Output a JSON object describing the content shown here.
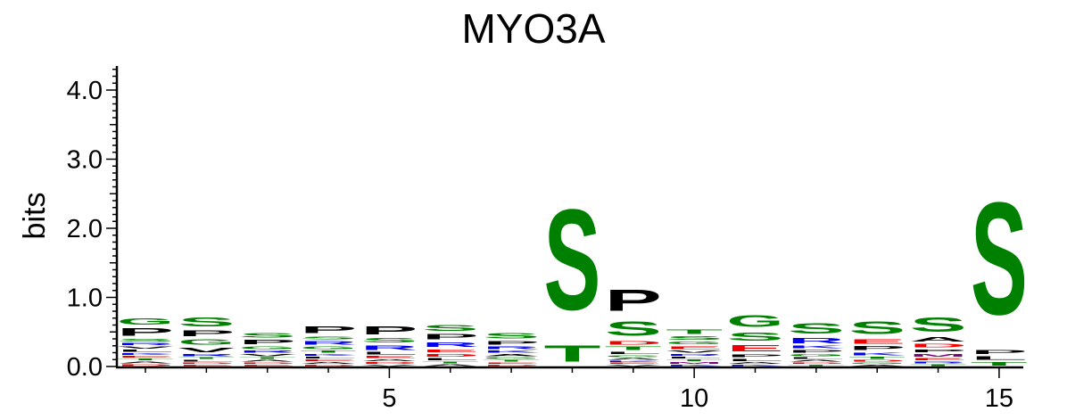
{
  "chart_data": {
    "type": "sequence-logo",
    "title": "MYO3A",
    "ylabel": "bits",
    "ylim": [
      0,
      4.3
    ],
    "yticks": [
      "0.0",
      "1.0",
      "2.0",
      "3.0",
      "4.0"
    ],
    "xticks": [
      "5",
      "10",
      "15"
    ],
    "colors": {
      "green": "#008000",
      "black": "#000000",
      "blue": "#0000ee",
      "red": "#ee0000",
      "purple": "#800080"
    },
    "positions": [
      {
        "pos": 1,
        "stack": [
          {
            "letter": "D",
            "color": "red",
            "bits": 0.04
          },
          {
            "letter": "A",
            "color": "black",
            "bits": 0.04
          },
          {
            "letter": "T",
            "color": "green",
            "bits": 0.04
          },
          {
            "letter": "E",
            "color": "red",
            "bits": 0.04
          },
          {
            "letter": "K",
            "color": "blue",
            "bits": 0.04
          },
          {
            "letter": "L",
            "color": "black",
            "bits": 0.05
          },
          {
            "letter": "V",
            "color": "black",
            "bits": 0.05
          },
          {
            "letter": "R",
            "color": "blue",
            "bits": 0.05
          },
          {
            "letter": "S",
            "color": "green",
            "bits": 0.06
          },
          {
            "letter": "P",
            "color": "black",
            "bits": 0.17
          },
          {
            "letter": "G",
            "color": "green",
            "bits": 0.14
          }
        ]
      },
      {
        "pos": 2,
        "stack": [
          {
            "letter": "E",
            "color": "red",
            "bits": 0.03
          },
          {
            "letter": "D",
            "color": "red",
            "bits": 0.03
          },
          {
            "letter": "L",
            "color": "black",
            "bits": 0.04
          },
          {
            "letter": "T",
            "color": "green",
            "bits": 0.04
          },
          {
            "letter": "R",
            "color": "blue",
            "bits": 0.05
          },
          {
            "letter": "V",
            "color": "black",
            "bits": 0.1
          },
          {
            "letter": "G",
            "color": "green",
            "bits": 0.12
          },
          {
            "letter": "P",
            "color": "black",
            "bits": 0.13
          },
          {
            "letter": "S",
            "color": "green",
            "bits": 0.21
          }
        ]
      },
      {
        "pos": 3,
        "stack": [
          {
            "letter": "E",
            "color": "red",
            "bits": 0.03
          },
          {
            "letter": "D",
            "color": "red",
            "bits": 0.03
          },
          {
            "letter": "A",
            "color": "black",
            "bits": 0.04
          },
          {
            "letter": "T",
            "color": "green",
            "bits": 0.04
          },
          {
            "letter": "V",
            "color": "black",
            "bits": 0.05
          },
          {
            "letter": "R",
            "color": "blue",
            "bits": 0.05
          },
          {
            "letter": "G",
            "color": "green",
            "bits": 0.06
          },
          {
            "letter": "P",
            "color": "black",
            "bits": 0.1
          },
          {
            "letter": "S",
            "color": "green",
            "bits": 0.1
          }
        ]
      },
      {
        "pos": 4,
        "stack": [
          {
            "letter": "D",
            "color": "red",
            "bits": 0.03
          },
          {
            "letter": "A",
            "color": "black",
            "bits": 0.04
          },
          {
            "letter": "E",
            "color": "red",
            "bits": 0.04
          },
          {
            "letter": "L",
            "color": "black",
            "bits": 0.04
          },
          {
            "letter": "K",
            "color": "blue",
            "bits": 0.04
          },
          {
            "letter": "T",
            "color": "green",
            "bits": 0.05
          },
          {
            "letter": "G",
            "color": "green",
            "bits": 0.06
          },
          {
            "letter": "R",
            "color": "blue",
            "bits": 0.08
          },
          {
            "letter": "S",
            "color": "green",
            "bits": 0.07
          },
          {
            "letter": "P",
            "color": "black",
            "bits": 0.16
          }
        ]
      },
      {
        "pos": 5,
        "stack": [
          {
            "letter": "V",
            "color": "black",
            "bits": 0.03
          },
          {
            "letter": "D",
            "color": "red",
            "bits": 0.04
          },
          {
            "letter": "A",
            "color": "black",
            "bits": 0.04
          },
          {
            "letter": "E",
            "color": "red",
            "bits": 0.05
          },
          {
            "letter": "L",
            "color": "black",
            "bits": 0.06
          },
          {
            "letter": "R",
            "color": "blue",
            "bits": 0.11
          },
          {
            "letter": "S",
            "color": "green",
            "bits": 0.1
          },
          {
            "letter": "P",
            "color": "black",
            "bits": 0.19
          }
        ]
      },
      {
        "pos": 6,
        "stack": [
          {
            "letter": "A",
            "color": "black",
            "bits": 0.04
          },
          {
            "letter": "T",
            "color": "green",
            "bits": 0.04
          },
          {
            "letter": "L",
            "color": "black",
            "bits": 0.05
          },
          {
            "letter": "D",
            "color": "red",
            "bits": 0.06
          },
          {
            "letter": "E",
            "color": "red",
            "bits": 0.07
          },
          {
            "letter": "R",
            "color": "blue",
            "bits": 0.11
          },
          {
            "letter": "P",
            "color": "black",
            "bits": 0.12
          },
          {
            "letter": "S",
            "color": "green",
            "bits": 0.13
          }
        ]
      },
      {
        "pos": 7,
        "stack": [
          {
            "letter": "D",
            "color": "red",
            "bits": 0.03
          },
          {
            "letter": "E",
            "color": "red",
            "bits": 0.03
          },
          {
            "letter": "T",
            "color": "green",
            "bits": 0.04
          },
          {
            "letter": "G",
            "color": "green",
            "bits": 0.04
          },
          {
            "letter": "A",
            "color": "black",
            "bits": 0.05
          },
          {
            "letter": "K",
            "color": "blue",
            "bits": 0.05
          },
          {
            "letter": "R",
            "color": "blue",
            "bits": 0.06
          },
          {
            "letter": "P",
            "color": "black",
            "bits": 0.08
          },
          {
            "letter": "S",
            "color": "green",
            "bits": 0.12
          }
        ]
      },
      {
        "pos": 8,
        "stack": [
          {
            "letter": "T",
            "color": "green",
            "bits": 0.37
          },
          {
            "letter": "S",
            "color": "green",
            "bits": 2.33
          }
        ]
      },
      {
        "pos": 9,
        "stack": [
          {
            "letter": "V",
            "color": "black",
            "bits": 0.03
          },
          {
            "letter": "E",
            "color": "red",
            "bits": 0.03
          },
          {
            "letter": "K",
            "color": "blue",
            "bits": 0.03
          },
          {
            "letter": "A",
            "color": "black",
            "bits": 0.04
          },
          {
            "letter": "G",
            "color": "green",
            "bits": 0.04
          },
          {
            "letter": "L",
            "color": "black",
            "bits": 0.05
          },
          {
            "letter": "T",
            "color": "green",
            "bits": 0.08
          },
          {
            "letter": "D",
            "color": "red",
            "bits": 0.08
          },
          {
            "letter": "S",
            "color": "green",
            "bits": 0.33
          },
          {
            "letter": "P",
            "color": "black",
            "bits": 0.5
          }
        ]
      },
      {
        "pos": 10,
        "stack": [
          {
            "letter": "K",
            "color": "blue",
            "bits": 0.03
          },
          {
            "letter": "M",
            "color": "purple",
            "bits": 0.04
          },
          {
            "letter": "T",
            "color": "green",
            "bits": 0.04
          },
          {
            "letter": "L",
            "color": "black",
            "bits": 0.04
          },
          {
            "letter": "R",
            "color": "blue",
            "bits": 0.04
          },
          {
            "letter": "V",
            "color": "black",
            "bits": 0.05
          },
          {
            "letter": "E",
            "color": "red",
            "bits": 0.07
          },
          {
            "letter": "G",
            "color": "green",
            "bits": 0.06
          },
          {
            "letter": "S",
            "color": "green",
            "bits": 0.08
          },
          {
            "letter": "T",
            "color": "green",
            "bits": 0.1
          }
        ]
      },
      {
        "pos": 11,
        "stack": [
          {
            "letter": "K",
            "color": "blue",
            "bits": 0.03
          },
          {
            "letter": "A",
            "color": "black",
            "bits": 0.04
          },
          {
            "letter": "L",
            "color": "black",
            "bits": 0.05
          },
          {
            "letter": "P",
            "color": "black",
            "bits": 0.07
          },
          {
            "letter": "E",
            "color": "red",
            "bits": 0.15
          },
          {
            "letter": "S",
            "color": "green",
            "bits": 0.18
          },
          {
            "letter": "G",
            "color": "green",
            "bits": 0.27
          }
        ]
      },
      {
        "pos": 12,
        "stack": [
          {
            "letter": "T",
            "color": "green",
            "bits": 0.03
          },
          {
            "letter": "D",
            "color": "red",
            "bits": 0.03
          },
          {
            "letter": "A",
            "color": "black",
            "bits": 0.04
          },
          {
            "letter": "L",
            "color": "black",
            "bits": 0.04
          },
          {
            "letter": "G",
            "color": "green",
            "bits": 0.05
          },
          {
            "letter": "P",
            "color": "black",
            "bits": 0.06
          },
          {
            "letter": "K",
            "color": "blue",
            "bits": 0.06
          },
          {
            "letter": "R",
            "color": "blue",
            "bits": 0.12
          },
          {
            "letter": "S",
            "color": "green",
            "bits": 0.24
          }
        ]
      },
      {
        "pos": 13,
        "stack": [
          {
            "letter": "A",
            "color": "black",
            "bits": 0.03
          },
          {
            "letter": "G",
            "color": "green",
            "bits": 0.03
          },
          {
            "letter": "D",
            "color": "red",
            "bits": 0.04
          },
          {
            "letter": "T",
            "color": "green",
            "bits": 0.05
          },
          {
            "letter": "K",
            "color": "blue",
            "bits": 0.07
          },
          {
            "letter": "P",
            "color": "black",
            "bits": 0.09
          },
          {
            "letter": "E",
            "color": "red",
            "bits": 0.1
          },
          {
            "letter": "S",
            "color": "green",
            "bits": 0.3
          }
        ]
      },
      {
        "pos": 14,
        "stack": [
          {
            "letter": "T",
            "color": "green",
            "bits": 0.04
          },
          {
            "letter": "R",
            "color": "blue",
            "bits": 0.04
          },
          {
            "letter": "E",
            "color": "red",
            "bits": 0.05
          },
          {
            "letter": "M",
            "color": "purple",
            "bits": 0.06
          },
          {
            "letter": "P",
            "color": "black",
            "bits": 0.07
          },
          {
            "letter": "D",
            "color": "red",
            "bits": 0.08
          },
          {
            "letter": "A",
            "color": "black",
            "bits": 0.1
          },
          {
            "letter": "S",
            "color": "green",
            "bits": 0.33
          }
        ]
      },
      {
        "pos": 15,
        "stack": [
          {
            "letter": "T",
            "color": "green",
            "bits": 0.08
          },
          {
            "letter": "L",
            "color": "black",
            "bits": 0.08
          },
          {
            "letter": "P",
            "color": "black",
            "bits": 0.09
          },
          {
            "letter": "S",
            "color": "green",
            "bits": 2.6
          }
        ]
      }
    ]
  }
}
